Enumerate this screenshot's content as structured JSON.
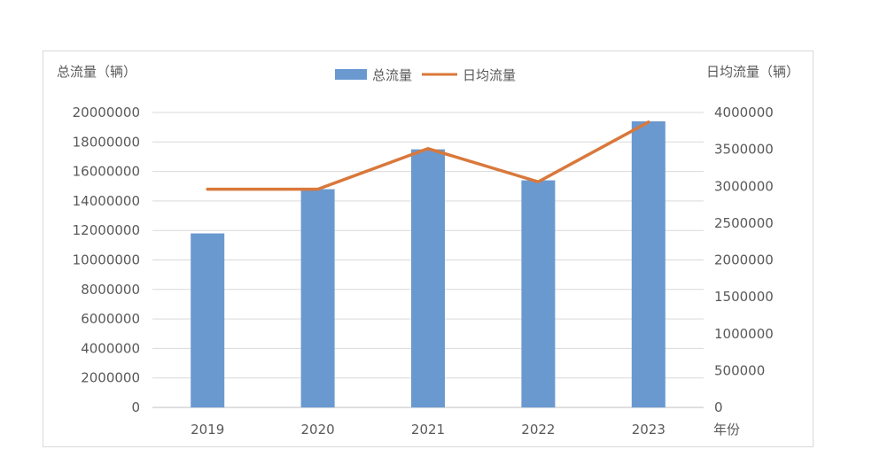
{
  "chart_data": {
    "type": "bar",
    "categories": [
      "2019",
      "2020",
      "2021",
      "2022",
      "2023"
    ],
    "series": [
      {
        "name": "总流量",
        "type": "bar",
        "axis": "left",
        "color": "#6a99d0",
        "values": [
          11800000,
          14800000,
          17500000,
          15400000,
          19400000
        ]
      },
      {
        "name": "日均流量",
        "type": "line",
        "axis": "right",
        "color": "#d9783b",
        "values": [
          2960000,
          2960000,
          3510000,
          3060000,
          3870000
        ]
      }
    ],
    "ylabel_left": "总流量（辆）",
    "ylabel_right": "日均流量（辆）",
    "xlabel": "年份",
    "ylim_left": [
      0,
      20000000
    ],
    "ylim_right": [
      0,
      4000000
    ],
    "yticks_left": [
      "0",
      "2000000",
      "4000000",
      "6000000",
      "8000000",
      "10000000",
      "12000000",
      "14000000",
      "16000000",
      "18000000",
      "20000000"
    ],
    "yticks_right": [
      "0",
      "500000",
      "1000000",
      "1500000",
      "2000000",
      "2500000",
      "3000000",
      "3500000",
      "4000000"
    ],
    "legend_position": "top",
    "grid": true
  }
}
